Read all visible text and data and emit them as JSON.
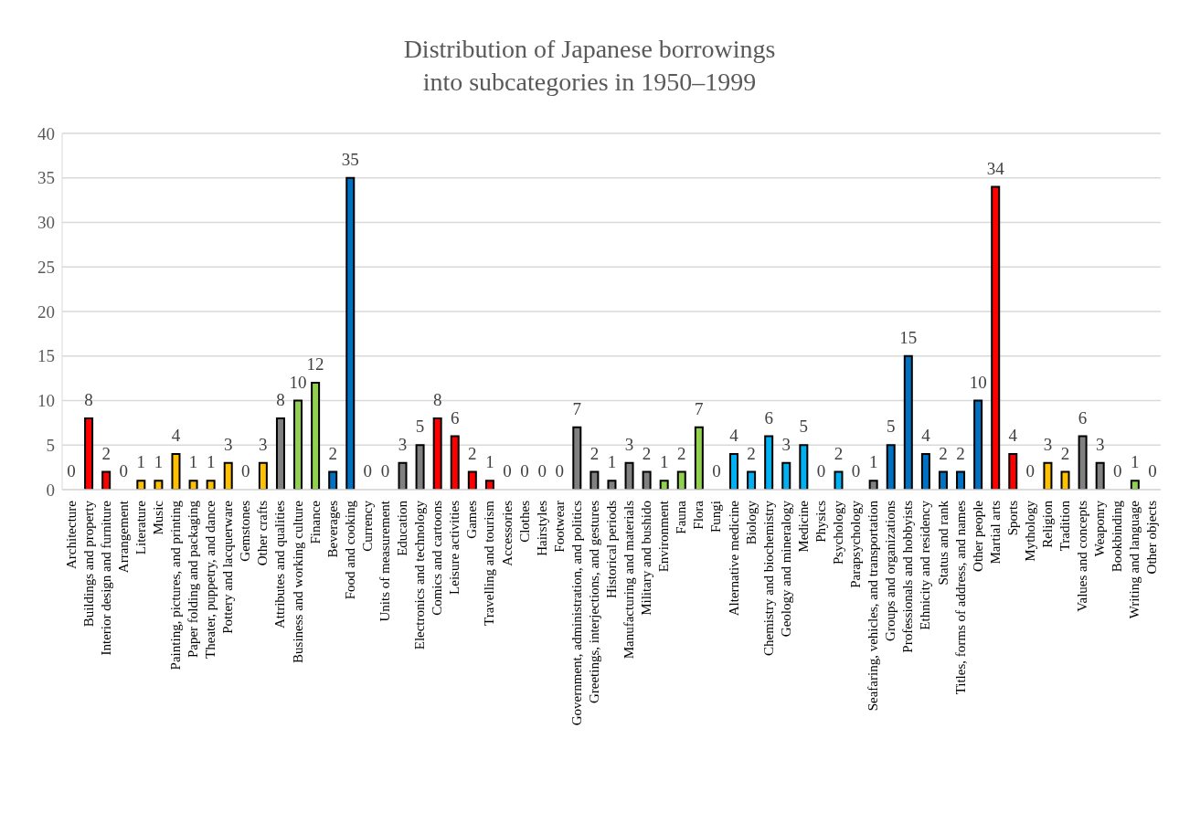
{
  "chart_data": {
    "type": "bar",
    "title": "Distribution of Japanese borrowings\ninto subcategories in 1950–1999",
    "categories": [
      "Architecture",
      "Buildings and property",
      "Interior design and furniture",
      "Arrangement",
      "Literature",
      "Music",
      "Painting, pictures, and printing",
      "Paper folding and packaging",
      "Theater, puppetry, and dance",
      "Pottery and lacquerware",
      "Gemstones",
      "Other crafts",
      "Attributes and qualities",
      "Business and working culture",
      "Finance",
      "Beverages",
      "Food and cooking",
      "Currency",
      "Units of measurement",
      "Education",
      "Electronics and technology",
      "Comics and cartoons",
      "Leisure activities",
      "Games",
      "Travelling and tourism",
      "Accessories",
      "Clothes",
      "Hairstyles",
      "Footwear",
      "Government, administration, and politics",
      "Greetings, interjections, and gestures",
      "Historical periods",
      "Manufacturing and materials",
      "Military and bushido",
      "Environment",
      "Fauna",
      "Flora",
      "Fungi",
      "Alternative medicine",
      "Biology",
      "Chemistry and biochemistry",
      "Geology and mineralogy",
      "Medicine",
      "Physics",
      "Psychology",
      "Parapsychology",
      "Seafaring, vehicles, and transportation",
      "Groups and organizations",
      "Professionals and hobbyists",
      "Ethnicity and residency",
      "Status and rank",
      "Titles, forms of address, and names",
      "Other people",
      "Martial arts",
      "Sports",
      "Mythology",
      "Religion",
      "Tradition",
      "Values and concepts",
      "Weaponry",
      "Bookbinding",
      "Writing and language",
      "Other objects"
    ],
    "values": [
      0,
      8,
      2,
      0,
      1,
      1,
      4,
      1,
      1,
      3,
      0,
      3,
      8,
      10,
      12,
      2,
      35,
      0,
      0,
      3,
      5,
      8,
      6,
      2,
      1,
      0,
      0,
      0,
      0,
      7,
      2,
      1,
      3,
      2,
      1,
      2,
      7,
      0,
      4,
      2,
      6,
      3,
      5,
      0,
      2,
      0,
      1,
      5,
      15,
      4,
      2,
      2,
      10,
      34,
      4,
      0,
      3,
      2,
      6,
      3,
      0,
      1,
      0
    ],
    "colors": [
      "#ff0000",
      "#ff0000",
      "#ff0000",
      "#ffc000",
      "#ffc000",
      "#ffc000",
      "#ffc000",
      "#ffc000",
      "#ffc000",
      "#ffc000",
      "#ffc000",
      "#ffc000",
      "#808080",
      "#92d050",
      "#92d050",
      "#0070c0",
      "#0070c0",
      "#808080",
      "#808080",
      "#808080",
      "#808080",
      "#ff0000",
      "#ff0000",
      "#ff0000",
      "#ff0000",
      "#ff0000",
      "#ff0000",
      "#ff0000",
      "#ff0000",
      "#808080",
      "#808080",
      "#808080",
      "#808080",
      "#808080",
      "#92d050",
      "#92d050",
      "#92d050",
      "#92d050",
      "#00b0f0",
      "#00b0f0",
      "#00b0f0",
      "#00b0f0",
      "#00b0f0",
      "#00b0f0",
      "#00b0f0",
      "#00b0f0",
      "#808080",
      "#0070c0",
      "#0070c0",
      "#0070c0",
      "#0070c0",
      "#0070c0",
      "#0070c0",
      "#ff0000",
      "#ff0000",
      "#ffc000",
      "#ffc000",
      "#ffc000",
      "#808080",
      "#808080",
      "#92d050",
      "#92d050",
      "#92d050"
    ],
    "ylim": [
      0,
      40
    ],
    "yticks": [
      0,
      5,
      10,
      15,
      20,
      25,
      30,
      35,
      40
    ],
    "grid": "y",
    "data_labels": true
  }
}
